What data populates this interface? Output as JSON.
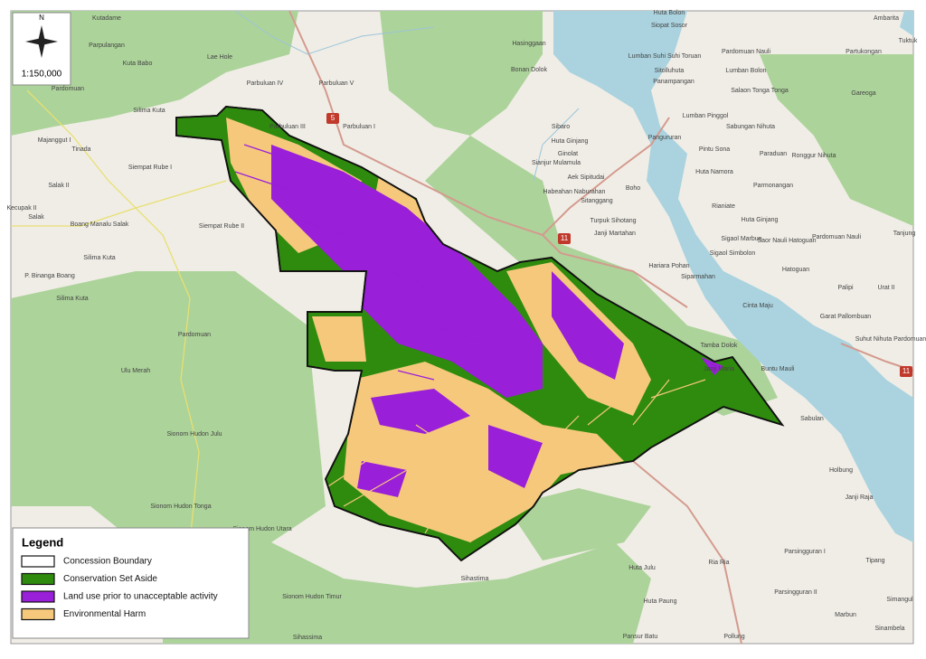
{
  "map": {
    "north": "N",
    "scale": "1:150,000",
    "legend": {
      "title": "Legend",
      "items": [
        {
          "label": "Concession Boundary",
          "color": "#ffffff"
        },
        {
          "label": "Conservation Set Aside",
          "color": "#2e8b0e"
        },
        {
          "label": "Land use prior to unacceptable activity",
          "color": "#9a1fd8"
        },
        {
          "label": "Environmental Harm",
          "color": "#f6c87c"
        }
      ]
    },
    "road_numbers": [
      "5",
      "11",
      "11"
    ],
    "places": [
      "Kutadame",
      "Parpulangan",
      "Kuta Babo",
      "Lae Hole",
      "Parbuluan IV",
      "Pardomuan",
      "Parbuluan V",
      "Silima Kuta",
      "Parbuluan III",
      "Parbuluan I",
      "Majanggut I",
      "Tinada",
      "Siempat Rube I",
      "Salak II",
      "Kecupak II",
      "Salak",
      "Boang Manalu Salak",
      "Siempat Rube II",
      "Silima Kuta",
      "P. Binanga Boang",
      "Silima Kuta",
      "Pardomuan",
      "Ulu Merah",
      "Sionom Hudon Julu",
      "Sionom Hudon Tonga",
      "Sionom Hudon Utara",
      "Sionom Hudon Timur",
      "Sihastima",
      "Sihassima",
      "Huta Julu",
      "Huta Paung",
      "Pansur Batu",
      "Pollung",
      "Ria Ria",
      "Parsingguran I",
      "Parsingguran II",
      "Marbun",
      "Sinambela",
      "Simangul",
      "Tipang",
      "Janji Raja",
      "Holbung",
      "Sabulan",
      "Hasinggaan",
      "Bonan Dolok",
      "Sibaro",
      "Huta Ginjang",
      "Ginolat",
      "Sianjur Mulamula",
      "Aek Sipitudai",
      "Habeahan Naburahan",
      "Turpuk Sihotang",
      "Janji Martahan",
      "Boho",
      "Pangururan",
      "Huta Bolon",
      "Siopat Sosor",
      "Lumban Suhi Suhi Toruan",
      "Sitolluhuta",
      "Panampangan",
      "Salaon Tonga Tonga",
      "Lumban Pinggol",
      "Sabungan Nihuta",
      "Pintu Sona",
      "Paraduan",
      "Ronggur Nihuta",
      "Huta Namora",
      "Parmonangan",
      "Rianiate",
      "Huta Ginjang",
      "Pardomuan Nauli",
      "Sigaol Marbun",
      "Saor Nauli Hatoguan",
      "Sigaol Simbolon",
      "Hatoguan",
      "Hariara Pohan",
      "Siparmahan",
      "Palipi",
      "Cinta Maju",
      "Tamba Dolok",
      "Janji Maria",
      "Buntu Mauli",
      "Garat Pallombuan",
      "Suhut Nihuta Pardomuan",
      "Tanjung",
      "Urat II",
      "Gareoga",
      "Partukongan",
      "Pardomuan Nauli",
      "Lumban Bolon",
      "Ambarita",
      "Tuktuk",
      "Sitanggang"
    ]
  }
}
